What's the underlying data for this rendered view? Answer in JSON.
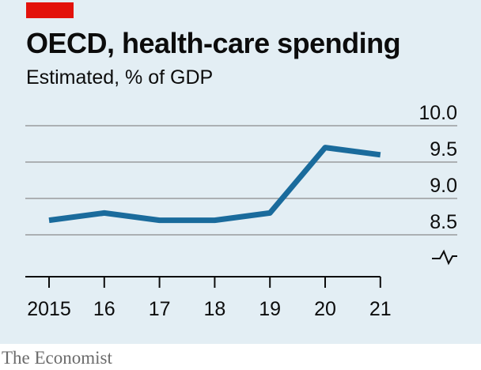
{
  "chart_data": {
    "type": "line",
    "title": "OECD, health-care spending",
    "subtitle": "Estimated, % of GDP",
    "x": [
      "2015",
      "16",
      "17",
      "18",
      "19",
      "20",
      "21"
    ],
    "series": [
      {
        "values": [
          8.7,
          8.8,
          8.7,
          8.7,
          8.8,
          9.7,
          9.6
        ]
      }
    ],
    "yticks": [
      "10.0",
      "9.5",
      "9.0",
      "8.5"
    ],
    "ylim": [
      8.5,
      10.0
    ],
    "y_axis_break": true,
    "grid": true,
    "line_color": "#1a6b9c"
  },
  "source": "The Economist",
  "colors": {
    "background": "#e3eef4",
    "accent": "#e3120b",
    "grid": "#8c8c8c"
  }
}
